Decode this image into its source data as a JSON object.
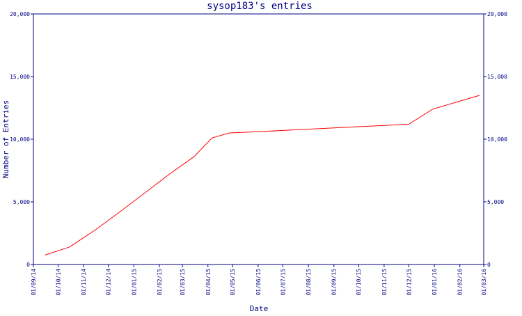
{
  "chart_data": {
    "type": "line",
    "title": "sysop183's entries",
    "xlabel": "Date",
    "ylabel": "Number of Entries",
    "ylim": [
      0,
      20000
    ],
    "yticks": [
      0,
      5000,
      10000,
      15000,
      20000
    ],
    "ytick_labels": [
      "0",
      "5,000",
      "10,000",
      "15,000",
      "20,000"
    ],
    "xlim": [
      "2014-09-01",
      "2016-03-01"
    ],
    "xtick_dates": [
      "2014-09-01",
      "2014-10-01",
      "2014-11-01",
      "2014-12-01",
      "2015-01-01",
      "2015-02-01",
      "2015-03-01",
      "2015-04-01",
      "2015-05-01",
      "2015-06-01",
      "2015-07-01",
      "2015-08-01",
      "2015-09-01",
      "2015-10-01",
      "2015-11-01",
      "2015-12-01",
      "2016-01-01",
      "2016-02-01",
      "2016-03-01"
    ],
    "xtick_labels": [
      "01/09/14",
      "01/10/14",
      "01/11/14",
      "01/12/14",
      "01/01/15",
      "01/02/15",
      "01/03/15",
      "01/04/15",
      "01/05/15",
      "01/06/15",
      "01/07/15",
      "01/08/15",
      "01/09/15",
      "01/10/15",
      "01/11/15",
      "01/12/15",
      "01/01/16",
      "01/02/16",
      "01/03/16"
    ],
    "grid": false,
    "colors": {
      "axis": "#000080",
      "line": "#ff0000",
      "text": "#000080"
    },
    "series": [
      {
        "x": [
          "2014-09-15",
          "2014-10-15",
          "2014-11-15",
          "2014-12-15",
          "2015-01-15",
          "2015-02-15",
          "2015-03-15",
          "2015-04-06",
          "2015-04-27",
          "2015-06-01",
          "2015-07-01",
          "2015-08-01",
          "2015-09-01",
          "2015-10-01",
          "2015-11-01",
          "2015-12-01",
          "2015-12-30",
          "2016-01-30",
          "2016-02-25"
        ],
        "y": [
          750,
          1400,
          2750,
          4200,
          5750,
          7300,
          8600,
          10100,
          10500,
          10600,
          10700,
          10800,
          10900,
          11000,
          11100,
          11200,
          12400,
          13000,
          13500
        ]
      }
    ]
  }
}
